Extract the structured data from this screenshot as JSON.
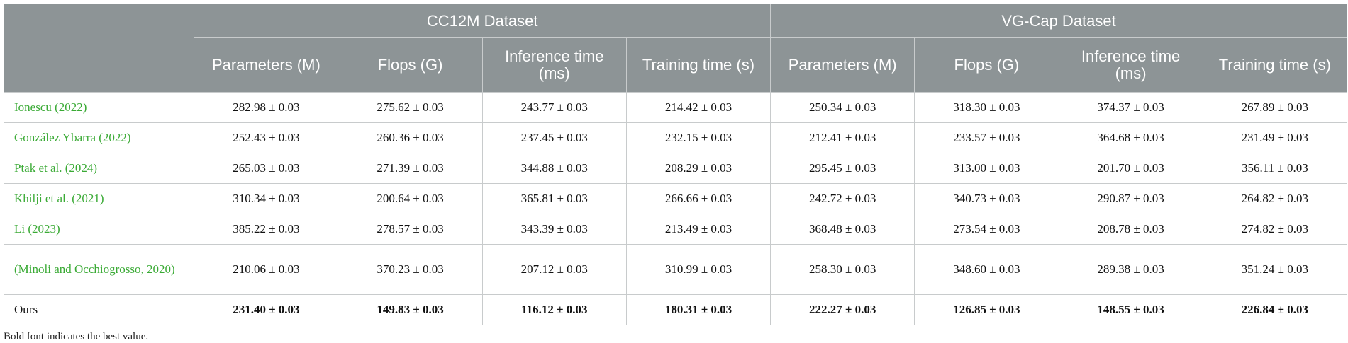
{
  "table": {
    "groups": [
      "CC12M Dataset",
      "VG-Cap Dataset"
    ],
    "columns": [
      "Parameters (M)",
      "Flops (G)",
      "Inference time (ms)",
      "Training time (s)",
      "Parameters (M)",
      "Flops (G)",
      "Inference time (ms)",
      "Training time (s)"
    ],
    "rows": [
      {
        "label": "Ionescu (2022)",
        "link": true,
        "bold": false,
        "cells": [
          "282.98 ± 0.03",
          "275.62 ± 0.03",
          "243.77 ± 0.03",
          "214.42 ± 0.03",
          "250.34 ± 0.03",
          "318.30 ± 0.03",
          "374.37 ± 0.03",
          "267.89 ± 0.03"
        ]
      },
      {
        "label": "González Ybarra (2022)",
        "link": true,
        "bold": false,
        "cells": [
          "252.43 ± 0.03",
          "260.36 ± 0.03",
          "237.45 ± 0.03",
          "232.15 ± 0.03",
          "212.41 ± 0.03",
          "233.57 ± 0.03",
          "364.68 ± 0.03",
          "231.49 ± 0.03"
        ]
      },
      {
        "label": "Ptak et al. (2024)",
        "link": true,
        "bold": false,
        "cells": [
          "265.03 ± 0.03",
          "271.39 ± 0.03",
          "344.88 ± 0.03",
          "208.29 ± 0.03",
          "295.45 ± 0.03",
          "313.00 ± 0.03",
          "201.70 ± 0.03",
          "356.11 ± 0.03"
        ]
      },
      {
        "label": "Khilji et al. (2021)",
        "link": true,
        "bold": false,
        "cells": [
          "310.34 ± 0.03",
          "200.64 ± 0.03",
          "365.81 ± 0.03",
          "266.66 ± 0.03",
          "242.72 ± 0.03",
          "340.73 ± 0.03",
          "290.87 ± 0.03",
          "264.82 ± 0.03"
        ]
      },
      {
        "label": "Li (2023)",
        "link": true,
        "bold": false,
        "cells": [
          "385.22 ± 0.03",
          "278.57 ± 0.03",
          "343.39 ± 0.03",
          "213.49 ± 0.03",
          "368.48 ± 0.03",
          "273.54 ± 0.03",
          "208.78 ± 0.03",
          "274.82 ± 0.03"
        ]
      },
      {
        "label": "(Minoli and Occhiogrosso, 2020)",
        "link": true,
        "bold": false,
        "cells": [
          "210.06 ± 0.03",
          "370.23 ± 0.03",
          "207.12 ± 0.03",
          "310.99 ± 0.03",
          "258.30 ± 0.03",
          "348.60 ± 0.03",
          "289.38 ± 0.03",
          "351.24 ± 0.03"
        ]
      },
      {
        "label": "Ours",
        "link": false,
        "bold": true,
        "cells": [
          "231.40 ± 0.03",
          "149.83 ± 0.03",
          "116.12 ± 0.03",
          "180.31 ± 0.03",
          "222.27 ± 0.03",
          "126.85 ± 0.03",
          "148.55 ± 0.03",
          "226.84 ± 0.03"
        ]
      }
    ],
    "footnote": "Bold font indicates the best value."
  }
}
